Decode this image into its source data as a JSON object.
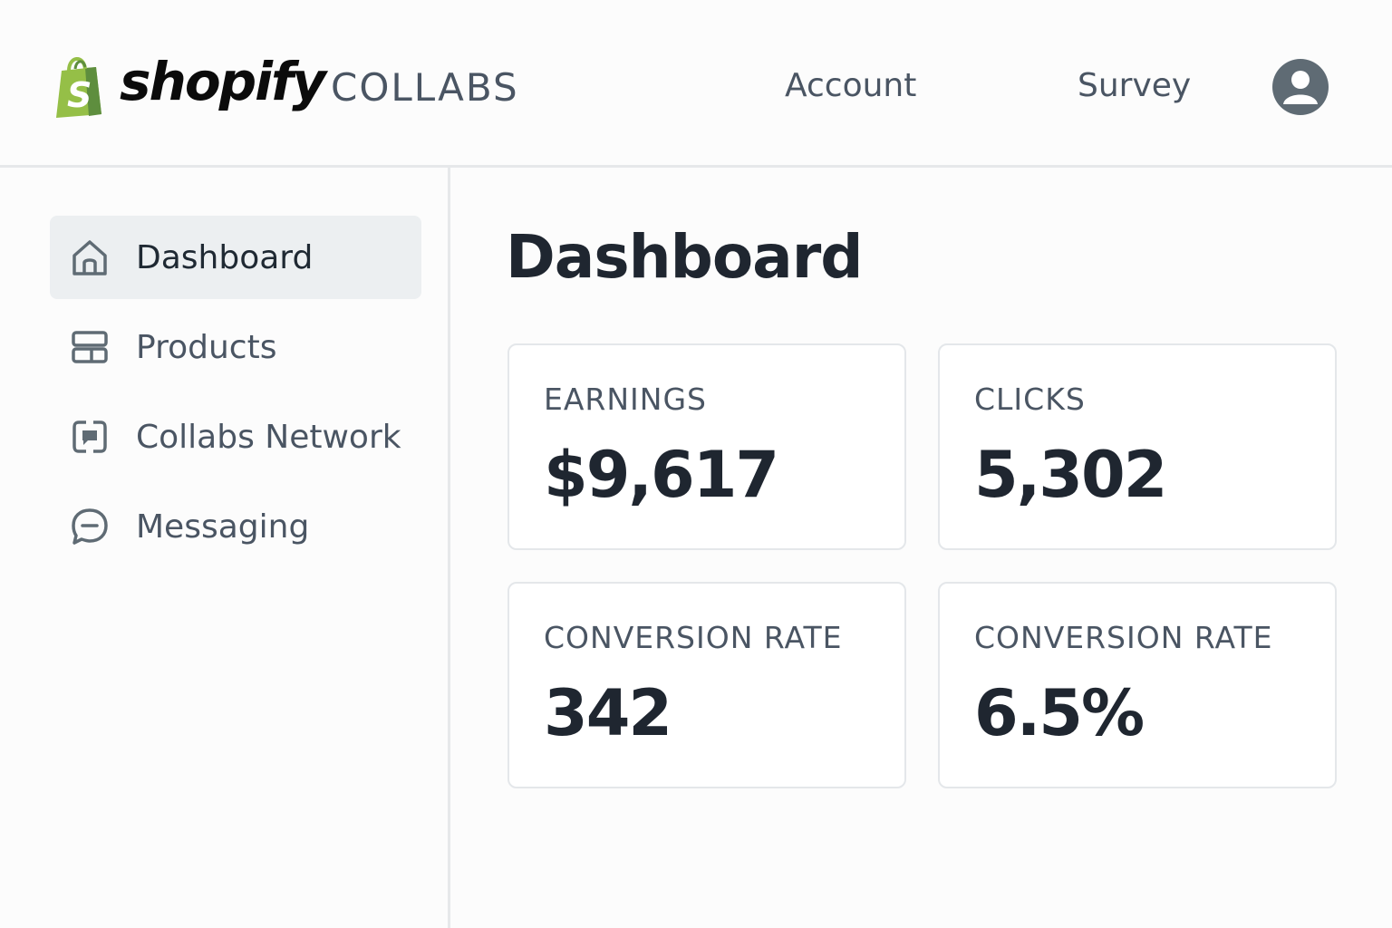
{
  "header": {
    "logo_text": "shopify",
    "app_name": "COLLABS",
    "nav": {
      "account_label": "Account",
      "survey_label": "Survey"
    },
    "avatar_icon": "user-avatar-icon"
  },
  "sidebar": {
    "items": [
      {
        "label": "Dashboard",
        "icon": "home-icon",
        "active": true
      },
      {
        "label": "Products",
        "icon": "products-icon",
        "active": false
      },
      {
        "label": "Collabs Network",
        "icon": "network-icon",
        "active": false
      },
      {
        "label": "Messaging",
        "icon": "message-icon",
        "active": false
      }
    ]
  },
  "main": {
    "title": "Dashboard",
    "cards": [
      {
        "label": "EARNINGS",
        "value": "$9,617"
      },
      {
        "label": "CLICKS",
        "value": "5,302"
      },
      {
        "label": "CONVERSION RATE",
        "value": "342"
      },
      {
        "label": "CONVERSION RATE",
        "value": "6.5%"
      }
    ]
  },
  "colors": {
    "brand_green": "#95bf47",
    "brand_green_dark": "#5e8e3e",
    "text_dark": "#1f2630",
    "text_muted": "#4a5563",
    "active_bg": "#eceff1",
    "avatar_bg": "#5f6b74"
  }
}
